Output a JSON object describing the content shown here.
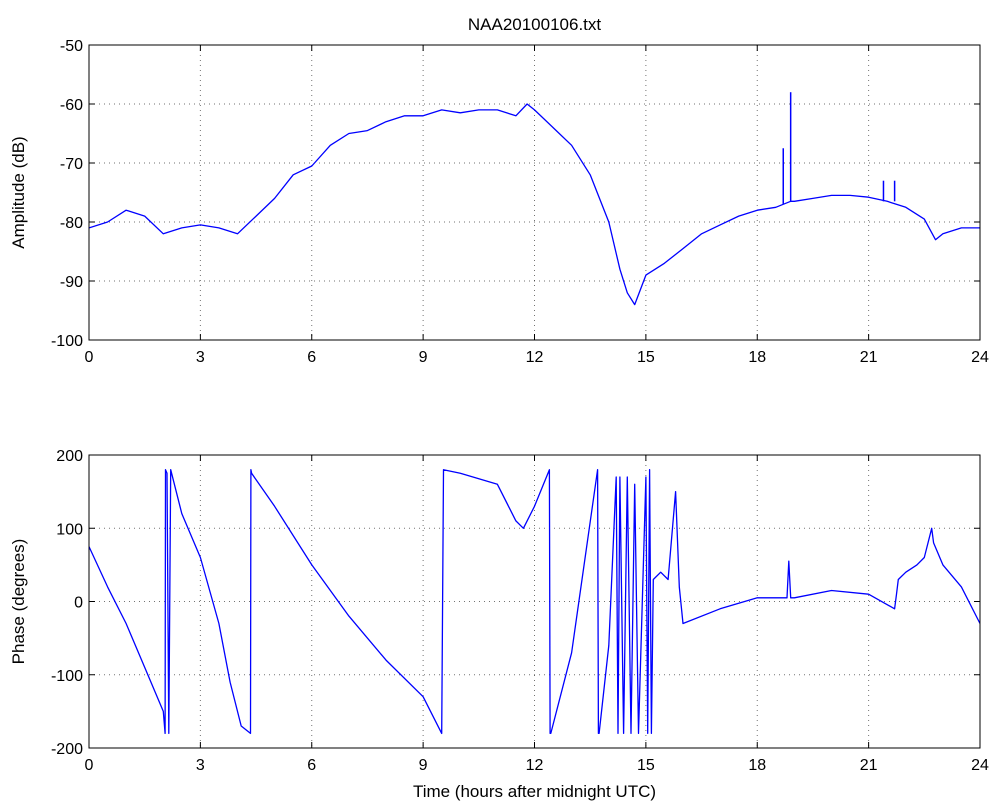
{
  "chart_data": [
    {
      "type": "line",
      "title": "NAA20100106.txt",
      "xlabel": "",
      "ylabel": "Amplitude (dB)",
      "xlim": [
        0,
        24
      ],
      "ylim": [
        -100,
        -50
      ],
      "xticks": [
        "0",
        "3",
        "6",
        "9",
        "12",
        "15",
        "18",
        "21",
        "24"
      ],
      "yticks": [
        "-50",
        "-60",
        "-70",
        "-80",
        "-90",
        "-100"
      ],
      "grid": true,
      "line_color": "#0000ff",
      "series": [
        {
          "x": [
            0,
            0.5,
            1,
            1.5,
            2,
            2.5,
            3,
            3.5,
            4,
            4.5,
            5,
            5.5,
            6,
            6.5,
            7,
            7.5,
            8,
            8.5,
            9,
            9.5,
            10,
            10.5,
            11,
            11.5,
            11.8,
            12,
            12.5,
            13,
            13.5,
            14,
            14.3,
            14.5,
            14.7,
            15,
            15.5,
            16,
            16.5,
            17,
            17.5,
            18,
            18.5,
            18.7,
            18.9,
            19,
            19.5,
            20,
            20.5,
            21,
            21.5,
            22,
            22.5,
            22.8,
            23,
            23.5,
            24
          ],
          "y": [
            -81,
            -80,
            -78,
            -79,
            -82,
            -81,
            -80.5,
            -81,
            -82,
            -79,
            -76,
            -72,
            -70.5,
            -67,
            -65,
            -64.5,
            -63,
            -62,
            -62,
            -61,
            -61.5,
            -61,
            -61,
            -62,
            -60,
            -61,
            -64,
            -67,
            -72,
            -80,
            -88,
            -92,
            -94,
            -89,
            -87,
            -84.5,
            -82,
            -80.5,
            -79,
            -78,
            -77.5,
            -77,
            -76.5,
            -76.5,
            -76,
            -75.5,
            -75.5,
            -75.8,
            -76.5,
            -77.5,
            -79.5,
            -83,
            -82,
            -81,
            -81
          ],
          "spikes": [
            {
              "x": 18.7,
              "y": -67.5
            },
            {
              "x": 18.9,
              "y": -58
            },
            {
              "x": 21.4,
              "y": -73
            },
            {
              "x": 21.7,
              "y": -73
            }
          ]
        }
      ]
    },
    {
      "type": "line",
      "title": "",
      "xlabel": "Time (hours after midnight UTC)",
      "ylabel": "Phase (degrees)",
      "xlim": [
        0,
        24
      ],
      "ylim": [
        -200,
        200
      ],
      "xticks": [
        "0",
        "3",
        "6",
        "9",
        "12",
        "15",
        "18",
        "21",
        "24"
      ],
      "yticks": [
        "200",
        "100",
        "0",
        "-100",
        "-200"
      ],
      "grid": true,
      "line_color": "#0000ff",
      "series": [
        {
          "x": [
            0,
            0.5,
            1,
            1.5,
            2.0,
            2.05,
            2.06,
            2.1,
            2.15,
            2.2,
            2.5,
            3,
            3.5,
            3.8,
            4.1,
            4.35,
            4.36,
            4.38,
            5,
            6,
            7,
            8,
            9,
            9.45,
            9.5,
            9.55,
            10,
            11,
            11.5,
            11.7,
            12,
            12.4,
            12.42,
            12.44,
            13,
            13.7,
            13.72,
            13.74,
            14,
            14.2,
            14.25,
            14.3,
            14.4,
            14.5,
            14.6,
            14.7,
            14.8,
            15.0,
            15.05,
            15.1,
            15.15,
            15.2,
            15.4,
            15.6,
            15.8,
            15.9,
            16,
            17,
            18,
            18.8,
            18.85,
            18.9,
            19,
            20,
            21,
            21.7,
            21.75,
            21.8,
            22,
            22.3,
            22.5,
            22.7,
            22.75,
            23,
            23.5,
            24
          ],
          "y": [
            75,
            20,
            -30,
            -90,
            -150,
            -180,
            180,
            175,
            -180,
            180,
            120,
            60,
            -30,
            -110,
            -170,
            -180,
            180,
            175,
            130,
            50,
            -20,
            -80,
            -130,
            -175,
            -180,
            180,
            175,
            160,
            110,
            100,
            130,
            180,
            -180,
            -180,
            -70,
            180,
            -180,
            -180,
            -60,
            170,
            -180,
            170,
            -180,
            170,
            -180,
            160,
            -180,
            170,
            -180,
            180,
            -180,
            30,
            40,
            30,
            150,
            20,
            -30,
            -10,
            5,
            5,
            55,
            5,
            5,
            15,
            10,
            -10,
            10,
            30,
            40,
            50,
            60,
            100,
            80,
            50,
            20,
            -30
          ]
        }
      ]
    }
  ]
}
